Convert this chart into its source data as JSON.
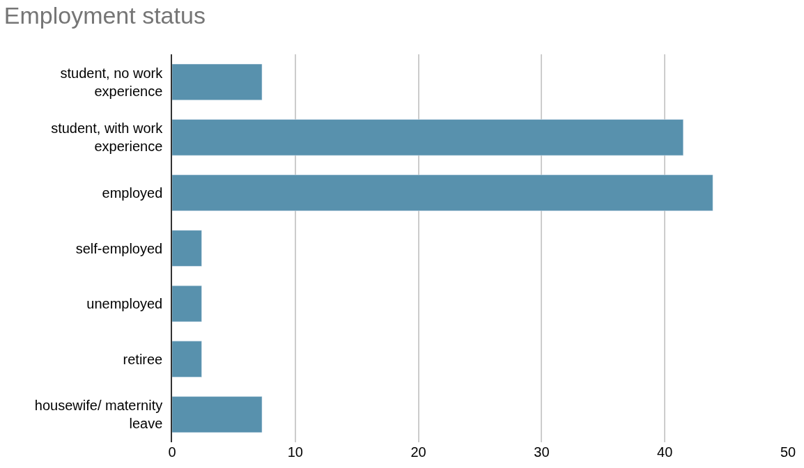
{
  "chart_data": {
    "type": "bar",
    "orientation": "horizontal",
    "title": "Employment status",
    "categories": [
      "student, no work experience",
      "student, with work experience",
      "employed",
      "self-employed",
      "unemployed",
      "retiree",
      "housewife/ maternity leave"
    ],
    "values": [
      7.3,
      41.5,
      43.9,
      2.4,
      2.4,
      2.4,
      7.3
    ],
    "color": "#5891ad",
    "xlim": [
      0,
      50
    ],
    "xticks": [
      0,
      10,
      20,
      30,
      40,
      50
    ],
    "grid": "x",
    "legend": false
  }
}
